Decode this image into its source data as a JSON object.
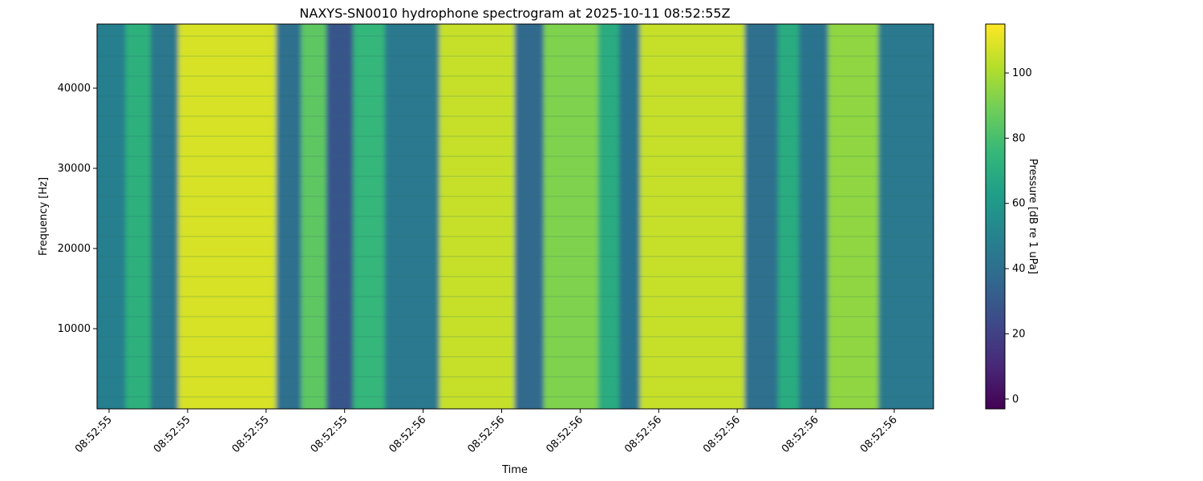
{
  "chart_data": {
    "type": "heatmap",
    "title": "NAXYS-SN0010 hydrophone spectrogram at 2025-10-11 08:52:55Z",
    "xlabel": "Time",
    "ylabel": "Frequency [Hz]",
    "colorbar_label": "Pressure [dB re 1 uPa]",
    "colormap": "viridis",
    "colormap_stops": [
      "#440154",
      "#482878",
      "#3e4989",
      "#31688e",
      "#26828e",
      "#1f9e89",
      "#35b779",
      "#6ece58",
      "#b5de2b",
      "#fde725"
    ],
    "x_tick_labels": [
      "08:52:55",
      "08:52:55",
      "08:52:55",
      "08:52:55",
      "08:52:56",
      "08:52:56",
      "08:52:56",
      "08:52:56",
      "08:52:56",
      "08:52:56",
      "08:52:56"
    ],
    "y_ticks": [
      10000,
      20000,
      30000,
      40000
    ],
    "y_tick_labels": [
      "10000",
      "20000",
      "30000",
      "40000"
    ],
    "ylim": [
      0,
      48000
    ],
    "colorbar_ticks": [
      0,
      20,
      40,
      60,
      80,
      100
    ],
    "colorbar_tick_labels": [
      "0",
      "20",
      "40",
      "60",
      "80",
      "100"
    ],
    "color_range": [
      -3,
      115
    ],
    "grid": false,
    "time_bands": [
      {
        "t_start": 0.0,
        "t_end": 0.035,
        "level_db": 48
      },
      {
        "t_start": 0.035,
        "t_end": 0.065,
        "level_db": 72
      },
      {
        "t_start": 0.065,
        "t_end": 0.098,
        "level_db": 44
      },
      {
        "t_start": 0.098,
        "t_end": 0.215,
        "level_db": 108
      },
      {
        "t_start": 0.215,
        "t_end": 0.245,
        "level_db": 40
      },
      {
        "t_start": 0.245,
        "t_end": 0.275,
        "level_db": 85
      },
      {
        "t_start": 0.275,
        "t_end": 0.307,
        "level_db": 28
      },
      {
        "t_start": 0.307,
        "t_end": 0.345,
        "level_db": 75
      },
      {
        "t_start": 0.345,
        "t_end": 0.41,
        "level_db": 45
      },
      {
        "t_start": 0.41,
        "t_end": 0.5,
        "level_db": 105
      },
      {
        "t_start": 0.5,
        "t_end": 0.535,
        "level_db": 38
      },
      {
        "t_start": 0.535,
        "t_end": 0.6,
        "level_db": 92
      },
      {
        "t_start": 0.6,
        "t_end": 0.625,
        "level_db": 70
      },
      {
        "t_start": 0.625,
        "t_end": 0.65,
        "level_db": 42
      },
      {
        "t_start": 0.65,
        "t_end": 0.775,
        "level_db": 105
      },
      {
        "t_start": 0.775,
        "t_end": 0.815,
        "level_db": 40
      },
      {
        "t_start": 0.815,
        "t_end": 0.84,
        "level_db": 70
      },
      {
        "t_start": 0.84,
        "t_end": 0.875,
        "level_db": 42
      },
      {
        "t_start": 0.875,
        "t_end": 0.935,
        "level_db": 95
      },
      {
        "t_start": 0.935,
        "t_end": 1.0,
        "level_db": 45
      }
    ]
  }
}
